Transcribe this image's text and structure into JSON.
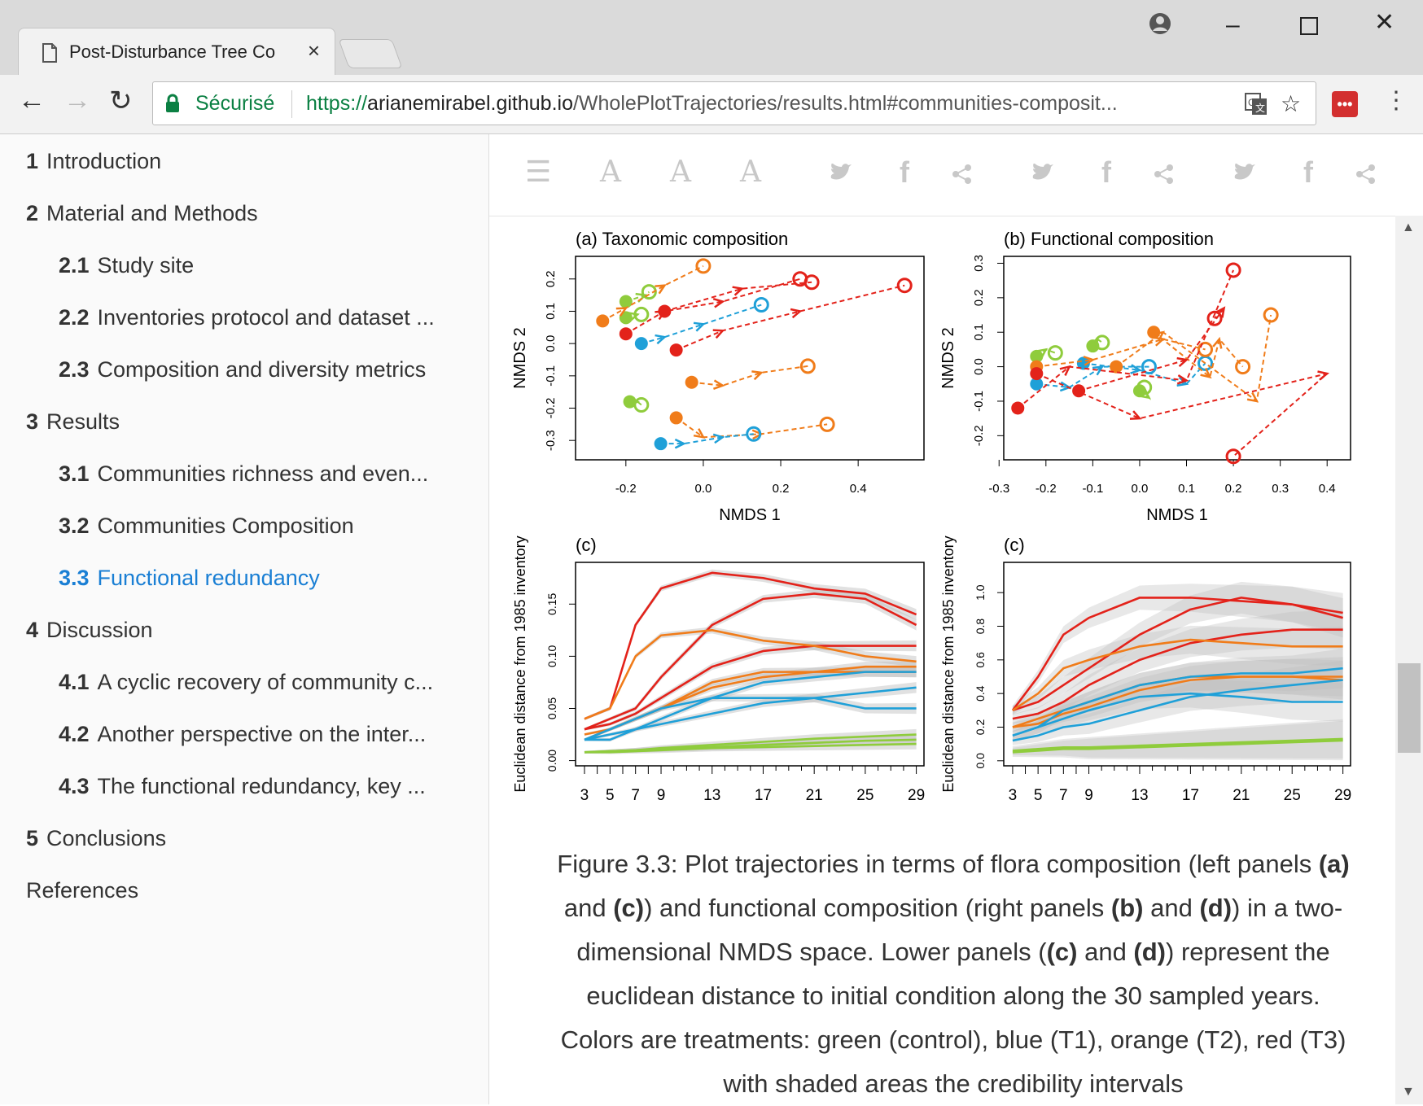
{
  "browser": {
    "tab_title": "Post-Disturbance Tree Co",
    "secure_label": "Sécurisé",
    "url_scheme": "https://",
    "url_host": "arianemirabel.github.io",
    "url_path": "/WholePlotTrajectories/results.html#communities-composit..."
  },
  "toc": [
    {
      "num": "1",
      "label": "Introduction"
    },
    {
      "num": "2",
      "label": "Material and Methods"
    },
    {
      "num": "2.1",
      "label": "Study site"
    },
    {
      "num": "2.2",
      "label": "Inventories protocol and dataset ..."
    },
    {
      "num": "2.3",
      "label": "Composition and diversity metrics"
    },
    {
      "num": "3",
      "label": "Results"
    },
    {
      "num": "3.1",
      "label": "Communities richness and even..."
    },
    {
      "num": "3.2",
      "label": "Communities Composition"
    },
    {
      "num": "3.3",
      "label": "Functional redundancy"
    },
    {
      "num": "4",
      "label": "Discussion"
    },
    {
      "num": "4.1",
      "label": "A cyclic recovery of community c..."
    },
    {
      "num": "4.2",
      "label": "Another perspective on the inter..."
    },
    {
      "num": "4.3",
      "label": "The functional redundancy, key ..."
    },
    {
      "num": "5",
      "label": "Conclusions"
    },
    {
      "num": "",
      "label": "References"
    }
  ],
  "toolbar_glyphs": {
    "menu": "☰",
    "font": "A",
    "share": "<"
  },
  "colors": {
    "control": "#8fcc3c",
    "T1": "#1fa0d8",
    "T2": "#f07c1a",
    "T3": "#e3221a",
    "active_link": "#1a7fd4"
  },
  "figure": {
    "caption_lines": [
      {
        "a": "Figure 3.3: Plot trajectories in terms of flora composition (left panels ",
        "b": "(a)",
        "c": ""
      },
      {
        "a": "and ",
        "b": "(c)",
        "c": ") and functional composition (right panels "
      },
      {
        "a": "dimensional NMDS space. Lower panels (",
        "b": "(c)",
        "c": " and "
      },
      {
        "a": "euclidean distance to initial condition along the 30 sampled years.",
        "b": "",
        "c": ""
      },
      {
        "a": "Colors are treatments: green (control), blue (T1), orange (T2), red (T3)",
        "b": "",
        "c": ""
      },
      {
        "a": "with shaded areas the credibility intervals",
        "b": "",
        "c": ""
      }
    ],
    "caption_extra": {
      "l2b": "(b)",
      "l2c": " and ",
      "l2d": "(d)",
      "l2e": ") in a two-",
      "l3d": "(d)",
      "l3e": ") represent the"
    }
  },
  "chart_data": [
    {
      "type": "scatter",
      "title": "(a) Taxonomic composition",
      "xlabel": "NMDS 1",
      "ylabel": "NMDS 2",
      "xlim": [
        -0.33,
        0.57
      ],
      "ylim": [
        -0.36,
        0.27
      ],
      "xticks": [
        "-0.2",
        "0.0",
        "0.2",
        "0.4"
      ],
      "yticks": [
        "-0.3",
        "-0.2",
        "-0.1",
        "0.0",
        "0.1",
        "0.2"
      ],
      "series": [
        {
          "color": "control",
          "points": [
            [
              -0.2,
              0.13
            ],
            [
              -0.15,
              0.15
            ],
            [
              -0.14,
              0.16
            ]
          ]
        },
        {
          "color": "control",
          "points": [
            [
              -0.2,
              0.08
            ],
            [
              -0.17,
              0.09
            ],
            [
              -0.16,
              0.09
            ]
          ]
        },
        {
          "color": "control",
          "points": [
            [
              -0.19,
              -0.18
            ],
            [
              -0.17,
              -0.18
            ],
            [
              -0.16,
              -0.19
            ]
          ]
        },
        {
          "color": "T2",
          "points": [
            [
              -0.26,
              0.07
            ],
            [
              -0.2,
              0.11
            ],
            [
              -0.1,
              0.18
            ],
            [
              0.0,
              0.24
            ]
          ]
        },
        {
          "color": "T2",
          "points": [
            [
              -0.03,
              -0.12
            ],
            [
              0.05,
              -0.13
            ],
            [
              0.15,
              -0.09
            ],
            [
              0.27,
              -0.07
            ]
          ]
        },
        {
          "color": "T2",
          "points": [
            [
              -0.07,
              -0.23
            ],
            [
              0.0,
              -0.29
            ],
            [
              0.15,
              -0.28
            ],
            [
              0.32,
              -0.25
            ]
          ]
        },
        {
          "color": "T1",
          "points": [
            [
              -0.16,
              0.0
            ],
            [
              -0.1,
              0.02
            ],
            [
              0.0,
              0.06
            ],
            [
              0.15,
              0.12
            ]
          ]
        },
        {
          "color": "T1",
          "points": [
            [
              -0.11,
              -0.31
            ],
            [
              -0.05,
              -0.31
            ],
            [
              0.05,
              -0.29
            ],
            [
              0.13,
              -0.28
            ]
          ]
        },
        {
          "color": "T3",
          "points": [
            [
              -0.2,
              0.03
            ],
            [
              -0.1,
              0.1
            ],
            [
              0.05,
              0.13
            ],
            [
              0.25,
              0.2
            ]
          ]
        },
        {
          "color": "T3",
          "points": [
            [
              -0.07,
              -0.02
            ],
            [
              0.05,
              0.04
            ],
            [
              0.25,
              0.1
            ],
            [
              0.52,
              0.18
            ]
          ]
        },
        {
          "color": "T3",
          "points": [
            [
              -0.1,
              0.1
            ],
            [
              0.1,
              0.17
            ],
            [
              0.28,
              0.19
            ]
          ]
        }
      ]
    },
    {
      "type": "scatter",
      "title": "(b) Functional composition",
      "xlabel": "NMDS 1",
      "ylabel": "NMDS 2",
      "xlim": [
        -0.29,
        0.45
      ],
      "ylim": [
        -0.27,
        0.32
      ],
      "xticks": [
        "-0.3",
        "-0.2",
        "-0.1",
        "0.0",
        "0.1",
        "0.2",
        "0.3",
        "0.4"
      ],
      "yticks": [
        "-0.2",
        "-0.1",
        "0.0",
        "0.1",
        "0.2",
        "0.3"
      ],
      "series": [
        {
          "color": "control",
          "points": [
            [
              -0.22,
              0.03
            ],
            [
              -0.2,
              0.05
            ],
            [
              -0.18,
              0.04
            ]
          ]
        },
        {
          "color": "control",
          "points": [
            [
              -0.1,
              0.06
            ],
            [
              -0.09,
              0.08
            ],
            [
              -0.08,
              0.07
            ]
          ]
        },
        {
          "color": "control",
          "points": [
            [
              0.0,
              -0.07
            ],
            [
              0.02,
              -0.09
            ],
            [
              0.01,
              -0.06
            ]
          ]
        },
        {
          "color": "T1",
          "points": [
            [
              -0.22,
              -0.05
            ],
            [
              -0.15,
              -0.06
            ],
            [
              -0.08,
              0.0
            ],
            [
              0.02,
              0.0
            ]
          ]
        },
        {
          "color": "T1",
          "points": [
            [
              -0.12,
              0.01
            ],
            [
              0.0,
              -0.01
            ],
            [
              0.1,
              -0.05
            ],
            [
              0.14,
              0.01
            ]
          ]
        },
        {
          "color": "T2",
          "points": [
            [
              -0.22,
              0.0
            ],
            [
              -0.1,
              0.02
            ],
            [
              0.05,
              0.08
            ],
            [
              0.14,
              0.05
            ]
          ]
        },
        {
          "color": "T2",
          "points": [
            [
              -0.05,
              0.0
            ],
            [
              0.05,
              0.1
            ],
            [
              0.25,
              -0.1
            ],
            [
              0.28,
              0.15
            ]
          ]
        },
        {
          "color": "T2",
          "points": [
            [
              0.03,
              0.1
            ],
            [
              0.15,
              -0.03
            ],
            [
              0.17,
              0.08
            ],
            [
              0.22,
              0.0
            ]
          ]
        },
        {
          "color": "T3",
          "points": [
            [
              -0.26,
              -0.12
            ],
            [
              -0.15,
              0.0
            ],
            [
              0.1,
              -0.04
            ],
            [
              0.2,
              0.28
            ]
          ]
        },
        {
          "color": "T3",
          "points": [
            [
              -0.22,
              -0.02
            ],
            [
              0.0,
              -0.15
            ],
            [
              0.4,
              -0.02
            ],
            [
              0.2,
              -0.26
            ]
          ]
        },
        {
          "color": "T3",
          "points": [
            [
              -0.13,
              -0.07
            ],
            [
              0.1,
              0.02
            ],
            [
              0.18,
              0.17
            ],
            [
              0.16,
              0.14
            ]
          ]
        }
      ]
    },
    {
      "type": "line",
      "title": "(c)",
      "ylabel": "Euclidean distance from 1985 inventory",
      "x": [
        3,
        5,
        7,
        9,
        13,
        17,
        21,
        25,
        29
      ],
      "xticks": [
        "3",
        "5",
        "7",
        "9",
        "13",
        "17",
        "21",
        "25",
        "29"
      ],
      "ylim": [
        -0.005,
        0.19
      ],
      "yticks": [
        "0.00",
        "0.05",
        "0.10",
        "0.15"
      ],
      "series": [
        {
          "color": "T3",
          "values": [
            0.04,
            0.05,
            0.13,
            0.165,
            0.18,
            0.175,
            0.165,
            0.16,
            0.14
          ]
        },
        {
          "color": "T3",
          "values": [
            0.03,
            0.04,
            0.05,
            0.08,
            0.13,
            0.155,
            0.16,
            0.155,
            0.13
          ]
        },
        {
          "color": "T3",
          "values": [
            0.03,
            0.035,
            0.045,
            0.06,
            0.09,
            0.105,
            0.11,
            0.11,
            0.11
          ]
        },
        {
          "color": "T2",
          "values": [
            0.04,
            0.05,
            0.1,
            0.12,
            0.125,
            0.115,
            0.11,
            0.1,
            0.095
          ]
        },
        {
          "color": "T2",
          "values": [
            0.02,
            0.03,
            0.04,
            0.05,
            0.075,
            0.085,
            0.085,
            0.09,
            0.09
          ]
        },
        {
          "color": "T2",
          "values": [
            0.025,
            0.03,
            0.04,
            0.05,
            0.07,
            0.08,
            0.085,
            0.085,
            0.085
          ]
        },
        {
          "color": "T1",
          "values": [
            0.02,
            0.03,
            0.04,
            0.05,
            0.06,
            0.06,
            0.06,
            0.05,
            0.05
          ]
        },
        {
          "color": "T1",
          "values": [
            0.02,
            0.025,
            0.03,
            0.04,
            0.06,
            0.075,
            0.08,
            0.085,
            0.085
          ]
        },
        {
          "color": "T1",
          "values": [
            0.02,
            0.02,
            0.03,
            0.035,
            0.045,
            0.055,
            0.06,
            0.065,
            0.07
          ]
        },
        {
          "color": "control",
          "values": [
            0.008,
            0.009,
            0.01,
            0.012,
            0.015,
            0.018,
            0.021,
            0.023,
            0.025
          ]
        },
        {
          "color": "control",
          "values": [
            0.008,
            0.009,
            0.01,
            0.011,
            0.013,
            0.015,
            0.017,
            0.019,
            0.02
          ]
        },
        {
          "color": "control",
          "values": [
            0.008,
            0.008,
            0.009,
            0.01,
            0.012,
            0.013,
            0.014,
            0.015,
            0.016
          ]
        }
      ]
    },
    {
      "type": "line",
      "title": "(c)",
      "ylabel": "Euclidean distance from 1985 inventory",
      "x": [
        3,
        5,
        7,
        9,
        13,
        17,
        21,
        25,
        29
      ],
      "xticks": [
        "3",
        "5",
        "7",
        "9",
        "13",
        "17",
        "21",
        "25",
        "29"
      ],
      "ylim": [
        -0.03,
        1.18
      ],
      "yticks": [
        "0.0",
        "0.2",
        "0.4",
        "0.6",
        "0.8",
        "1.0"
      ],
      "series": [
        {
          "color": "T3",
          "values": [
            0.3,
            0.5,
            0.75,
            0.85,
            0.97,
            0.97,
            0.95,
            0.93,
            0.88
          ]
        },
        {
          "color": "T3",
          "values": [
            0.3,
            0.35,
            0.45,
            0.55,
            0.75,
            0.9,
            0.97,
            0.93,
            0.85
          ]
        },
        {
          "color": "T3",
          "values": [
            0.25,
            0.28,
            0.35,
            0.45,
            0.6,
            0.7,
            0.75,
            0.78,
            0.78
          ]
        },
        {
          "color": "T2",
          "values": [
            0.3,
            0.4,
            0.55,
            0.6,
            0.68,
            0.72,
            0.7,
            0.68,
            0.68
          ]
        },
        {
          "color": "T2",
          "values": [
            0.2,
            0.25,
            0.3,
            0.35,
            0.45,
            0.5,
            0.5,
            0.5,
            0.48
          ]
        },
        {
          "color": "T2",
          "values": [
            0.2,
            0.22,
            0.28,
            0.32,
            0.42,
            0.48,
            0.5,
            0.5,
            0.5
          ]
        },
        {
          "color": "T1",
          "values": [
            0.15,
            0.2,
            0.25,
            0.3,
            0.38,
            0.4,
            0.38,
            0.35,
            0.35
          ]
        },
        {
          "color": "T1",
          "values": [
            0.15,
            0.2,
            0.3,
            0.35,
            0.45,
            0.5,
            0.52,
            0.52,
            0.55
          ]
        },
        {
          "color": "T1",
          "values": [
            0.12,
            0.15,
            0.2,
            0.22,
            0.3,
            0.38,
            0.42,
            0.45,
            0.48
          ]
        },
        {
          "color": "control",
          "values": [
            0.06,
            0.07,
            0.08,
            0.08,
            0.09,
            0.1,
            0.11,
            0.12,
            0.13
          ]
        },
        {
          "color": "control",
          "values": [
            0.05,
            0.06,
            0.07,
            0.07,
            0.08,
            0.09,
            0.1,
            0.11,
            0.12
          ]
        }
      ]
    }
  ]
}
